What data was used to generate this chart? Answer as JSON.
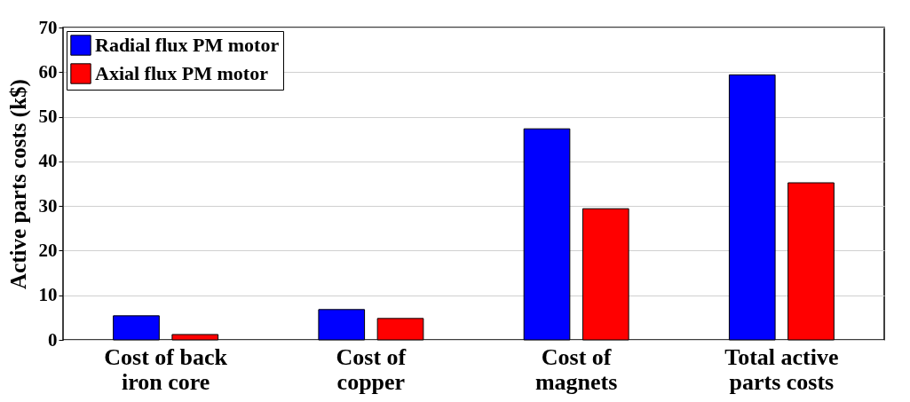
{
  "chart_data": {
    "type": "bar",
    "ylabel": "Active parts costs (k$)",
    "categories": [
      "Cost of back\niron core",
      "Cost of\ncopper",
      "Cost of\nmagnets",
      "Total active\nparts costs"
    ],
    "series": [
      {
        "name": "Radial flux PM motor",
        "color": "#0000ff",
        "values": [
          5.4,
          6.8,
          47.3,
          59.4
        ]
      },
      {
        "name": "Axial flux PM motor",
        "color": "#ff0000",
        "values": [
          1.2,
          4.8,
          29.4,
          35.2
        ]
      }
    ],
    "ylim": [
      0,
      70
    ],
    "yticks": [
      0,
      10,
      20,
      30,
      40,
      50,
      60,
      70
    ],
    "grid": "y",
    "legend": "top left"
  }
}
